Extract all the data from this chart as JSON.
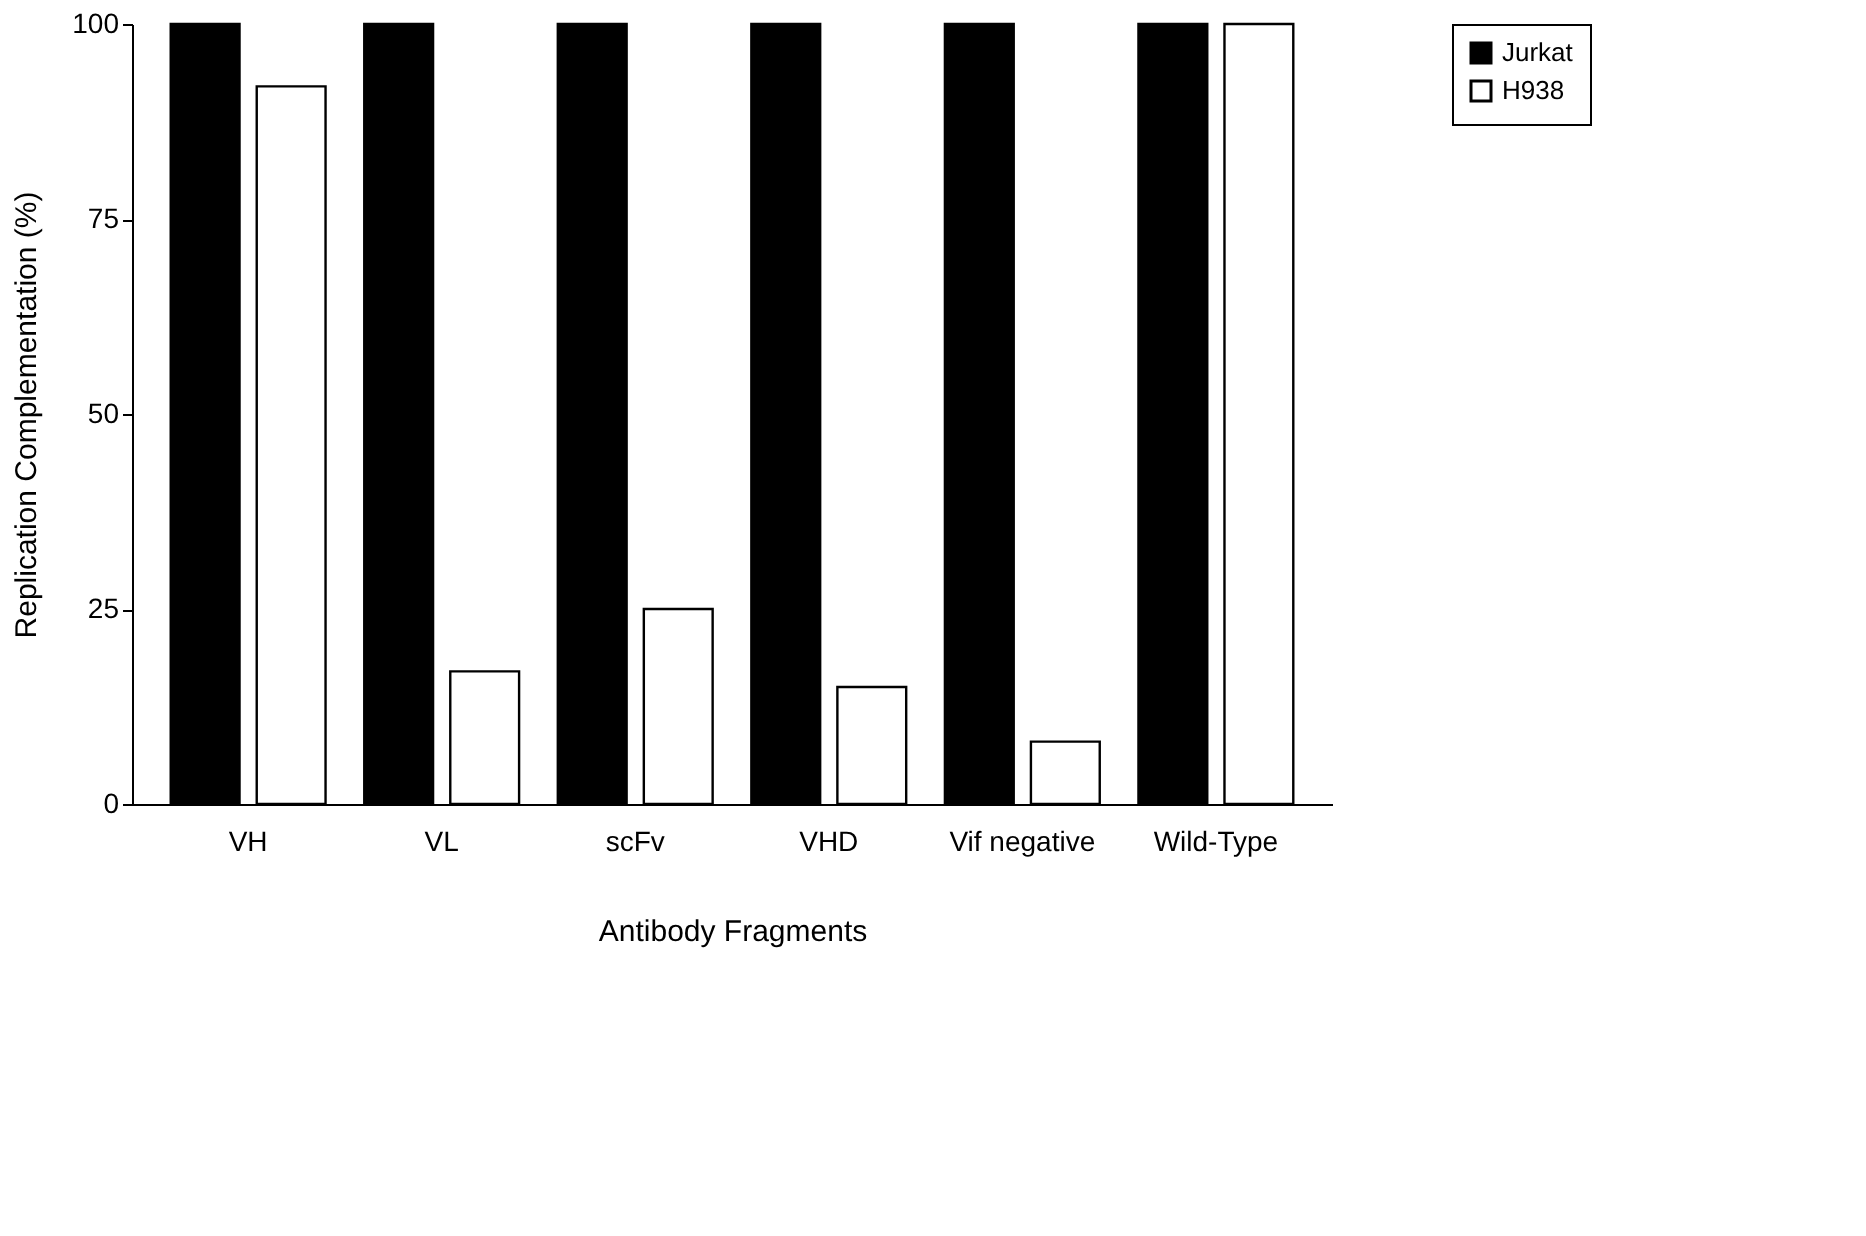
{
  "chart_data": {
    "type": "bar",
    "xlabel": "Antibody Fragments",
    "ylabel": "Replication Complementation (%)",
    "categories": [
      "VH",
      "VL",
      "scFv",
      "VHD",
      "Vif negative",
      "Wild-Type"
    ],
    "series": [
      {
        "name": "Jurkat",
        "color": "#000000",
        "values": [
          100,
          100,
          100,
          100,
          100,
          100
        ]
      },
      {
        "name": "H938",
        "color": "#ffffff",
        "values": [
          92,
          17,
          25,
          15,
          8,
          100
        ]
      }
    ],
    "ylim": [
      0,
      100
    ],
    "yticks": [
      0,
      25,
      50,
      75,
      100
    ],
    "grid": false,
    "legend": "top right"
  }
}
